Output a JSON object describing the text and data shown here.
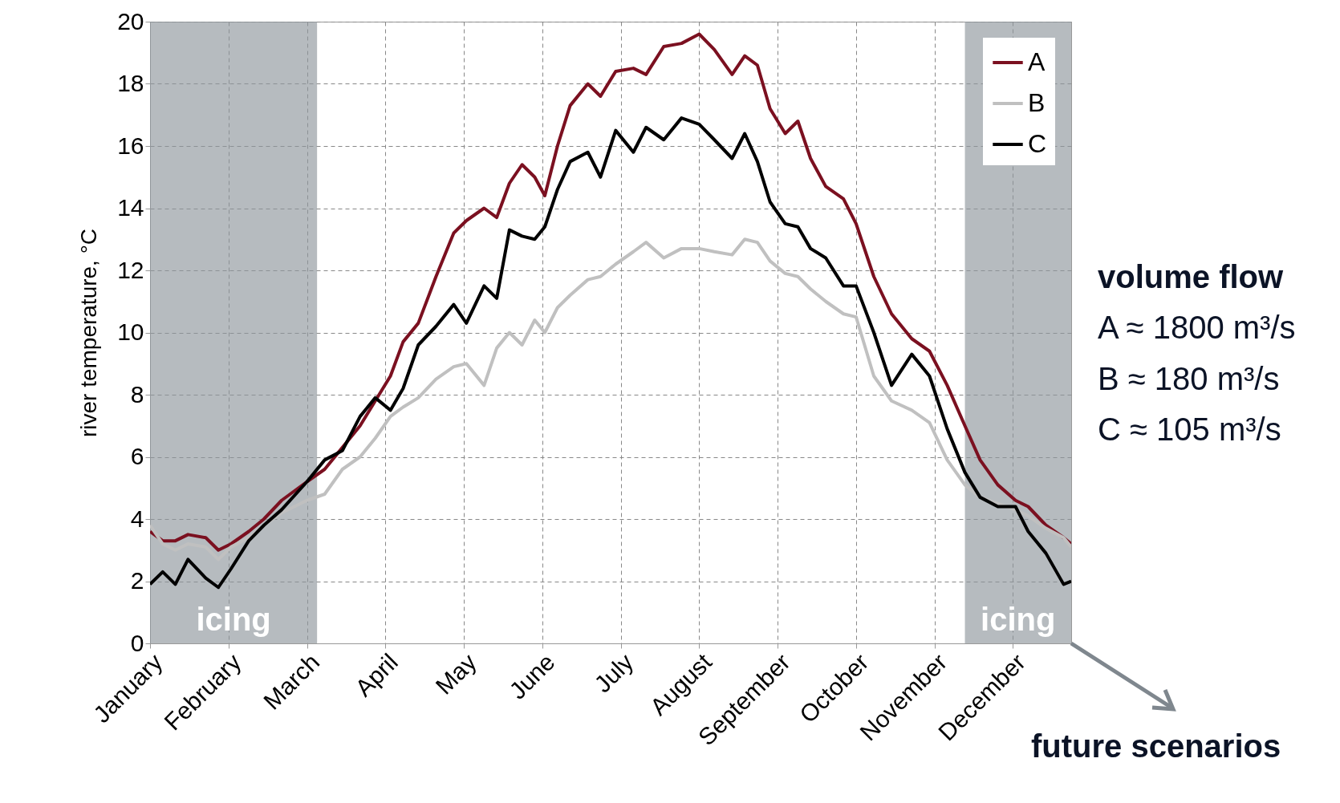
{
  "chart_data": {
    "type": "line",
    "ylabel": "river temperature, °C",
    "x": [
      "--01-01",
      "--01-06",
      "--01-11",
      "--01-16",
      "--01-23",
      "--01-28",
      "--02-02",
      "--02-09",
      "--02-15",
      "--02-22",
      "--03-04",
      "--03-11",
      "--03-18",
      "--03-25",
      "--03-31",
      "--04-06",
      "--04-11",
      "--04-17",
      "--04-24",
      "--05-01",
      "--05-06",
      "--05-13",
      "--05-18",
      "--05-23",
      "--05-28",
      "--06-02",
      "--06-06",
      "--06-11",
      "--06-16",
      "--06-23",
      "--06-28",
      "--07-04",
      "--07-11",
      "--07-16",
      "--07-23",
      "--07-30",
      "--08-06",
      "--08-12",
      "--08-19",
      "--08-24",
      "--08-29",
      "--09-03",
      "--09-09",
      "--09-14",
      "--09-19",
      "--09-25",
      "--10-02",
      "--10-07",
      "--10-14",
      "--10-21",
      "--10-29",
      "--11-05",
      "--11-12",
      "--11-19",
      "--11-25",
      "--12-02",
      "--12-09",
      "--12-14",
      "--12-21",
      "--12-28",
      "--12-31"
    ],
    "series": [
      {
        "name": "A",
        "color": "#7b1020",
        "values": [
          3.6,
          3.3,
          3.3,
          3.5,
          3.4,
          3.0,
          3.2,
          3.6,
          4.0,
          4.6,
          5.2,
          5.6,
          6.3,
          7.0,
          7.8,
          8.6,
          9.7,
          10.3,
          11.8,
          13.2,
          13.6,
          14.0,
          13.7,
          14.8,
          15.4,
          15.0,
          14.4,
          16.0,
          17.3,
          18.0,
          17.6,
          18.4,
          18.5,
          18.3,
          19.2,
          19.3,
          19.6,
          19.1,
          18.3,
          18.9,
          18.6,
          17.2,
          16.4,
          16.8,
          15.6,
          14.7,
          14.3,
          13.5,
          11.8,
          10.6,
          9.8,
          9.4,
          8.3,
          7.0,
          5.9,
          5.1,
          4.6,
          4.4,
          3.8,
          3.4,
          3.2
        ]
      },
      {
        "name": "B",
        "color": "#c0c0c0",
        "values": [
          3.8,
          3.2,
          3.0,
          3.2,
          3.1,
          2.7,
          3.1,
          3.4,
          3.8,
          4.2,
          4.6,
          4.8,
          5.6,
          6.0,
          6.6,
          7.3,
          7.6,
          7.9,
          8.5,
          8.9,
          9.0,
          8.3,
          9.5,
          10.0,
          9.6,
          10.4,
          10.0,
          10.8,
          11.2,
          11.7,
          11.8,
          12.2,
          12.6,
          12.9,
          12.4,
          12.7,
          12.7,
          12.6,
          12.5,
          13.0,
          12.9,
          12.3,
          11.9,
          11.8,
          11.4,
          11.0,
          10.6,
          10.5,
          8.6,
          7.8,
          7.5,
          7.1,
          5.9,
          5.1,
          4.7,
          4.5,
          4.3,
          4.1,
          3.7,
          3.4,
          3.1
        ]
      },
      {
        "name": "C",
        "color": "#000000",
        "values": [
          1.9,
          2.3,
          1.9,
          2.7,
          2.1,
          1.8,
          2.4,
          3.3,
          3.8,
          4.3,
          5.2,
          5.9,
          6.2,
          7.3,
          7.9,
          7.5,
          8.2,
          9.6,
          10.2,
          10.9,
          10.3,
          11.5,
          11.1,
          13.3,
          13.1,
          13.0,
          13.4,
          14.6,
          15.5,
          15.8,
          15.0,
          16.5,
          15.8,
          16.6,
          16.2,
          16.9,
          16.7,
          16.2,
          15.6,
          16.4,
          15.5,
          14.2,
          13.5,
          13.4,
          12.7,
          12.4,
          11.5,
          11.5,
          10.0,
          8.3,
          9.3,
          8.6,
          6.9,
          5.5,
          4.7,
          4.4,
          4.4,
          3.6,
          2.9,
          1.9,
          2.0
        ]
      }
    ],
    "xlim": [
      "--01-01",
      "--12-31"
    ],
    "xticks": [
      {
        "value": "--01-01",
        "label": "January"
      },
      {
        "value": "--02-01",
        "label": "February"
      },
      {
        "value": "--03-04",
        "label": "March"
      },
      {
        "value": "--04-04",
        "label": "April"
      },
      {
        "value": "--05-05",
        "label": "May"
      },
      {
        "value": "--06-05",
        "label": "June"
      },
      {
        "value": "--07-06",
        "label": "July"
      },
      {
        "value": "--08-06",
        "label": "August"
      },
      {
        "value": "--09-06",
        "label": "September"
      },
      {
        "value": "--10-07",
        "label": "October"
      },
      {
        "value": "--11-07",
        "label": "November"
      },
      {
        "value": "--12-08",
        "label": "December"
      }
    ],
    "ylim": [
      0,
      20
    ],
    "yticks": [
      0,
      2,
      4,
      6,
      8,
      10,
      12,
      14,
      16,
      18,
      20
    ],
    "grid": true,
    "legend": "top right",
    "bands": [
      {
        "axis": "x",
        "from": "--01-01",
        "to": "--03-08",
        "label": "icing",
        "color": "#8f969c"
      },
      {
        "axis": "x",
        "from": "--11-19",
        "to": "--12-31",
        "label": "icing",
        "color": "#8f969c"
      }
    ],
    "annotations": [
      "volume flow",
      "A ≈ 1800 m³/s",
      "B ≈ 180 m³/s",
      "C ≈ 105 m³/s",
      "future scenarios"
    ]
  }
}
